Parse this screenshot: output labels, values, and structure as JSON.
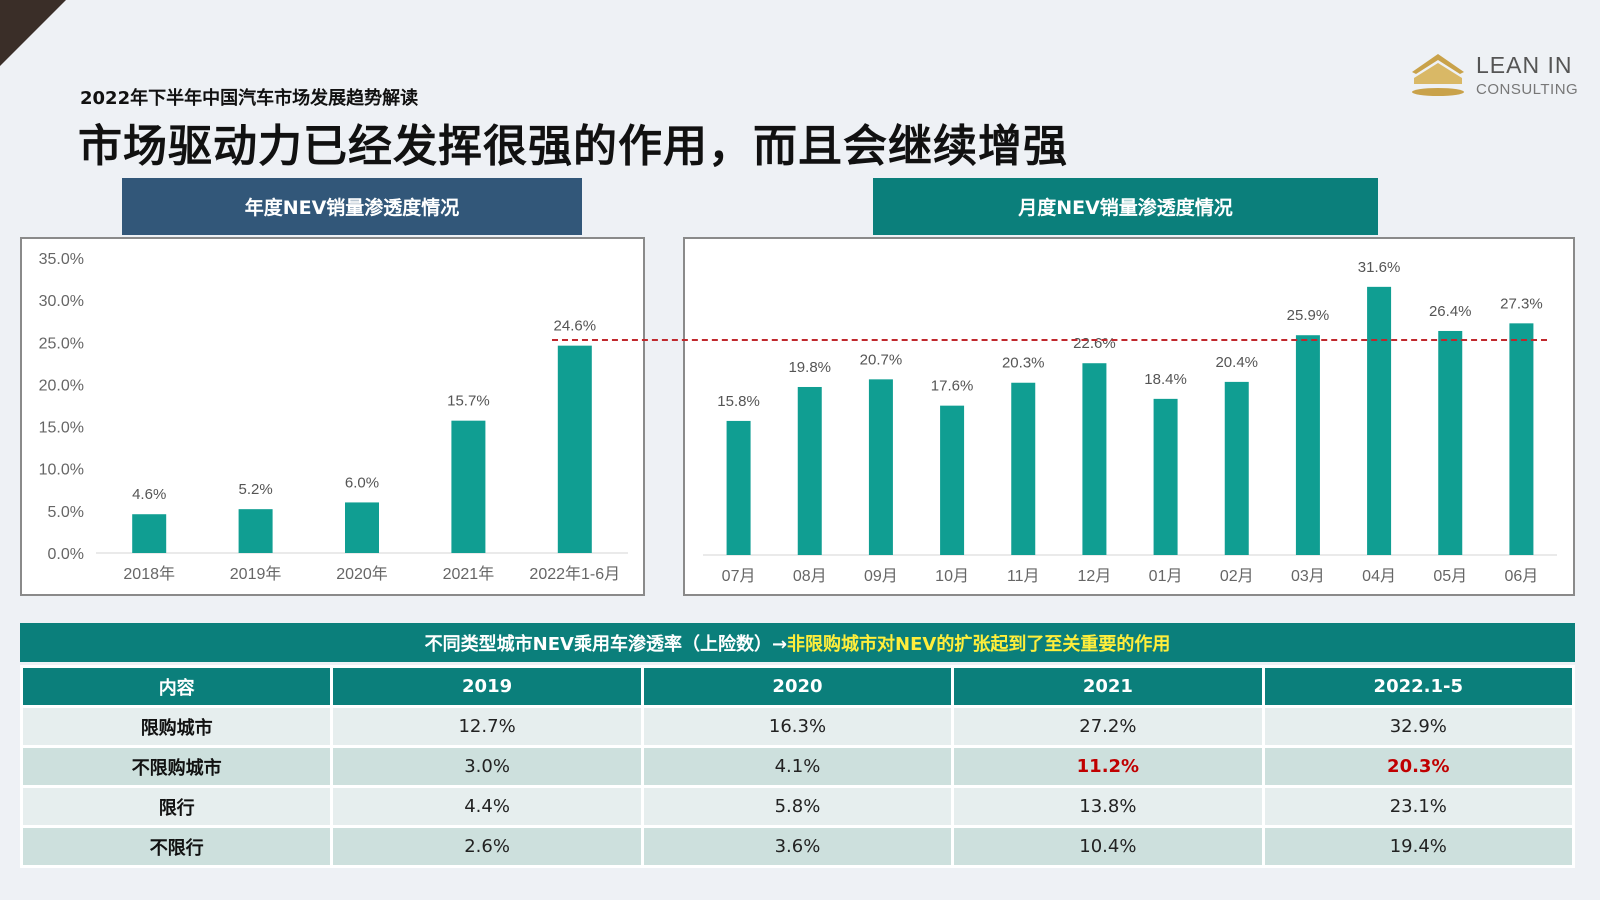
{
  "header": {
    "subtitle": "2022年下半年中国汽车市场发展趋势解读",
    "title": "市场驱动力已经发挥很强的作用，而且会继续增强"
  },
  "logo": {
    "line1": "LEAN IN",
    "line2": "CONSULTING",
    "icon": "house-roof-logo-icon",
    "color": "#c9a24a"
  },
  "colors": {
    "bar": "#109e92",
    "left_tab": "#325779",
    "right_tab": "#0b7f7b",
    "reference_line": "#c0282d",
    "highlight_red": "#c00000",
    "table_header": "#0b7f7b",
    "table_title_highlight": "#ffee3b"
  },
  "chart_data": [
    {
      "type": "bar",
      "title": "年度NEV销量渗透度情况",
      "categories": [
        "2018年",
        "2019年",
        "2020年",
        "2021年",
        "2022年1-6月"
      ],
      "values": [
        4.6,
        5.2,
        6.0,
        15.7,
        24.6
      ],
      "value_labels": [
        "4.6%",
        "5.2%",
        "6.0%",
        "15.7%",
        "24.6%"
      ],
      "yticks": [
        "0.0%",
        "5.0%",
        "10.0%",
        "15.0%",
        "20.0%",
        "25.0%",
        "30.0%",
        "35.0%"
      ],
      "ylim": [
        0,
        35
      ],
      "grid": false
    },
    {
      "type": "bar",
      "title": "月度NEV销量渗透度情况",
      "categories": [
        "07月",
        "08月",
        "09月",
        "10月",
        "11月",
        "12月",
        "01月",
        "02月",
        "03月",
        "04月",
        "05月",
        "06月"
      ],
      "values": [
        15.8,
        19.8,
        20.7,
        17.6,
        20.3,
        22.6,
        18.4,
        20.4,
        25.9,
        31.6,
        26.4,
        27.3
      ],
      "value_labels": [
        "15.8%",
        "19.8%",
        "20.7%",
        "17.6%",
        "20.3%",
        "22.6%",
        "18.4%",
        "20.4%",
        "25.9%",
        "31.6%",
        "26.4%",
        "27.3%"
      ],
      "ylim": [
        0,
        35
      ],
      "grid": false,
      "reference_line": 24.6
    }
  ],
  "table": {
    "title_normal": "不同类型城市NEV乘用车渗透率（上险数）→",
    "title_highlight": "非限购城市对NEV的扩张起到了至关重要的作用",
    "headers": [
      "内容",
      "2019",
      "2020",
      "2021",
      "2022.1-5"
    ],
    "rows": [
      [
        "限购城市",
        "12.7%",
        "16.3%",
        "27.2%",
        "32.9%"
      ],
      [
        "不限购城市",
        "3.0%",
        "4.1%",
        "11.2%",
        "20.3%"
      ],
      [
        "限行",
        "4.4%",
        "5.8%",
        "13.8%",
        "23.1%"
      ],
      [
        "不限行",
        "2.6%",
        "3.6%",
        "10.4%",
        "19.4%"
      ]
    ]
  }
}
